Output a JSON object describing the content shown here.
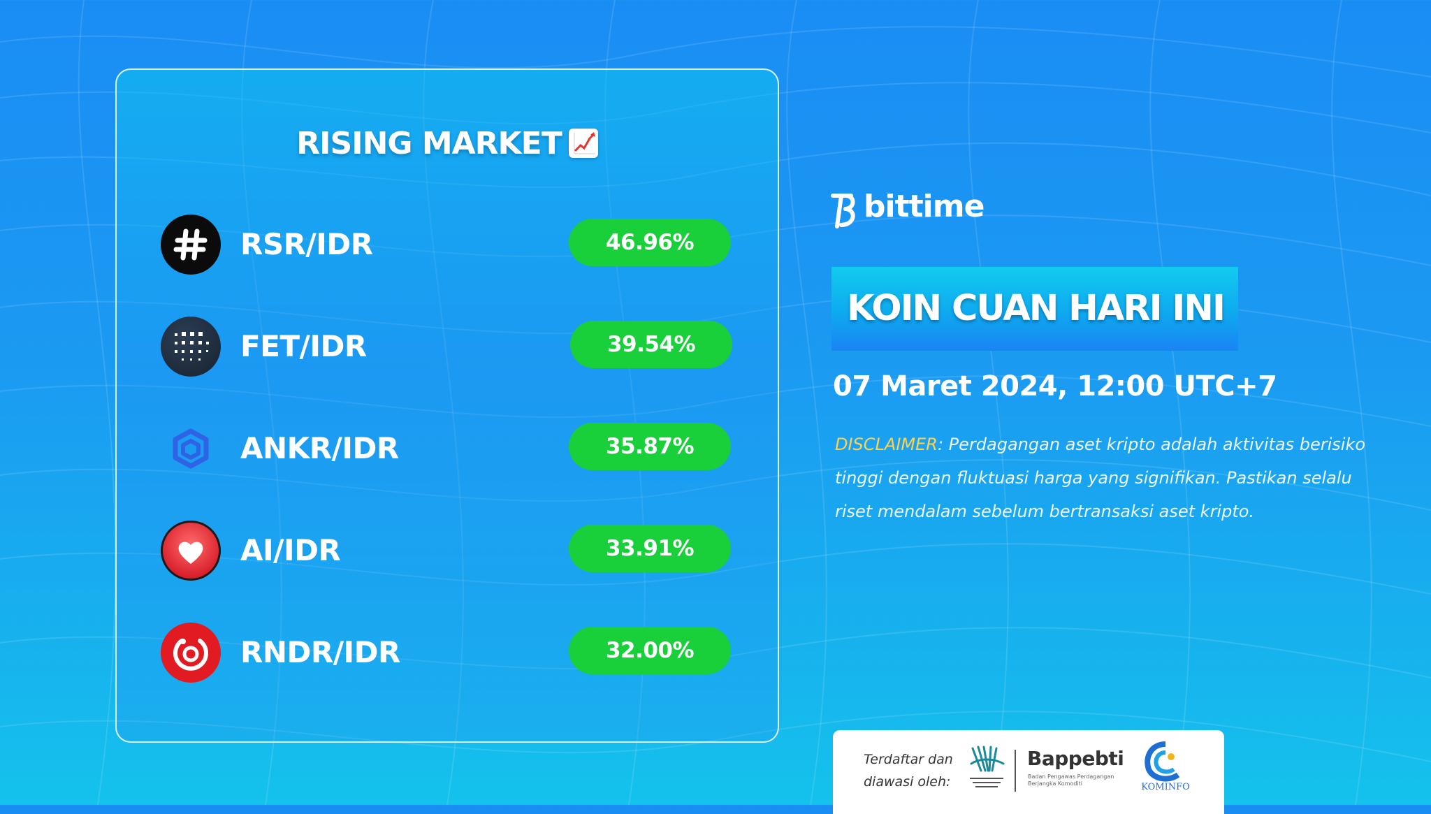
{
  "card": {
    "title": "RISING MARKET",
    "title_icon": "chart-increasing-icon",
    "rows": [
      {
        "pair": "RSR/IDR",
        "change": "46.96%",
        "icon": "rsr-hash-icon"
      },
      {
        "pair": "FET/IDR",
        "change": "39.54%",
        "icon": "fet-dots-icon"
      },
      {
        "pair": "ANKR/IDR",
        "change": "35.87%",
        "icon": "ankr-hexagon-icon"
      },
      {
        "pair": "AI/IDR",
        "change": "33.91%",
        "icon": "ai-heart-icon"
      },
      {
        "pair": "RNDR/IDR",
        "change": "32.00%",
        "icon": "rndr-ring-icon"
      }
    ]
  },
  "brand": {
    "name": "bittime",
    "logo": "bittime-logo-icon"
  },
  "headline": "KOIN CUAN HARI INI",
  "date": "07 Maret 2024, 12:00 UTC+7",
  "disclaimer": {
    "label": "DISCLAIMER",
    "text": ": Perdagangan aset kripto adalah aktivitas berisiko tinggi dengan fluktuasi harga yang signifikan. Pastikan selalu riset mendalam sebelum bertransaksi aset kripto."
  },
  "footer": {
    "registered_text": "Terdaftar dan diawasi oleh:",
    "bappebti": "Bappebti",
    "bappebti_sub": "Badan Pengawas Perdagangan Berjangka Komoditi",
    "kominfo": "KOMINFO"
  },
  "colors": {
    "background": "#1b9af2",
    "pill_green": "#19cf3a",
    "disclaimer_label": "#ffd24a"
  }
}
